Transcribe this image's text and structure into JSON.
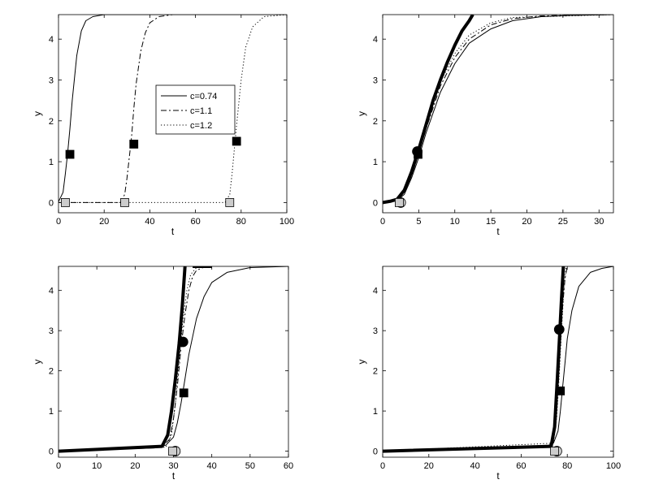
{
  "chart_data": [
    {
      "type": "line",
      "xlabel": "t",
      "ylabel": "y",
      "xlim": [
        0,
        100
      ],
      "ylim": [
        -0.25,
        4.6
      ],
      "xticks": [
        "0",
        "20",
        "40",
        "60",
        "80",
        "100"
      ],
      "yticks": [
        "0",
        "1",
        "2",
        "3",
        "4"
      ],
      "legend": {
        "placement": "center",
        "entries": [
          {
            "label": "c=0.74",
            "style": "solid"
          },
          {
            "label": "c=1.1",
            "style": "dashdot"
          },
          {
            "label": "c=1.2",
            "style": "dotted"
          }
        ]
      },
      "series": [
        {
          "name": "c=0.74",
          "style": "solid",
          "width": 1,
          "points": [
            [
              0,
              0.02
            ],
            [
              2,
              0.25
            ],
            [
              3,
              0.7
            ],
            [
              4,
              1.2
            ],
            [
              5,
              1.8
            ],
            [
              6,
              2.5
            ],
            [
              8,
              3.6
            ],
            [
              10,
              4.2
            ],
            [
              12,
              4.45
            ],
            [
              15,
              4.55
            ],
            [
              20,
              4.6
            ],
            [
              100,
              4.6
            ]
          ]
        },
        {
          "name": "c=1.1",
          "style": "dashdot",
          "width": 1,
          "points": [
            [
              0,
              0
            ],
            [
              27,
              0
            ],
            [
              29,
              0.2
            ],
            [
              30,
              0.6
            ],
            [
              31,
              1.1
            ],
            [
              32,
              1.6
            ],
            [
              33,
              2.3
            ],
            [
              34,
              2.9
            ],
            [
              36,
              3.7
            ],
            [
              38,
              4.15
            ],
            [
              40,
              4.4
            ],
            [
              44,
              4.55
            ],
            [
              50,
              4.6
            ],
            [
              100,
              4.6
            ]
          ]
        },
        {
          "name": "c=1.2",
          "style": "dotted",
          "width": 1,
          "points": [
            [
              0,
              0
            ],
            [
              73,
              0
            ],
            [
              75,
              0.2
            ],
            [
              76,
              0.7
            ],
            [
              77,
              1.3
            ],
            [
              78,
              1.9
            ],
            [
              80,
              3.0
            ],
            [
              82,
              3.8
            ],
            [
              85,
              4.3
            ],
            [
              90,
              4.55
            ],
            [
              100,
              4.6
            ]
          ]
        }
      ],
      "markers": [
        {
          "shape": "square",
          "fill": "#000000",
          "x": 5,
          "y": 1.18
        },
        {
          "shape": "square",
          "fill": "#000000",
          "x": 33,
          "y": 1.43
        },
        {
          "shape": "square",
          "fill": "#000000",
          "x": 78,
          "y": 1.5
        },
        {
          "shape": "square",
          "fill": "#cccccc",
          "x": 3,
          "y": 0
        },
        {
          "shape": "square",
          "fill": "#cccccc",
          "x": 29,
          "y": 0
        },
        {
          "shape": "square",
          "fill": "#cccccc",
          "x": 75,
          "y": 0
        }
      ]
    },
    {
      "type": "line",
      "xlabel": "t",
      "ylabel": "y",
      "xlim": [
        0,
        32
      ],
      "ylim": [
        -0.25,
        4.6
      ],
      "xticks": [
        "0",
        "5",
        "10",
        "15",
        "20",
        "25",
        "30"
      ],
      "yticks": [
        "0",
        "1",
        "2",
        "3",
        "4"
      ],
      "series": [
        {
          "style": "solid",
          "width": 1,
          "points": [
            [
              0,
              0.02
            ],
            [
              2,
              0.05
            ],
            [
              3,
              0.2
            ],
            [
              4,
              0.6
            ],
            [
              5,
              1.1
            ],
            [
              6,
              1.7
            ],
            [
              8,
              2.7
            ],
            [
              10,
              3.4
            ],
            [
              12,
              3.9
            ],
            [
              15,
              4.25
            ],
            [
              18,
              4.45
            ],
            [
              22,
              4.55
            ],
            [
              26,
              4.58
            ],
            [
              32,
              4.6
            ]
          ]
        },
        {
          "style": "dashdot",
          "width": 1,
          "points": [
            [
              0,
              0.02
            ],
            [
              2,
              0.06
            ],
            [
              3,
              0.25
            ],
            [
              4,
              0.65
            ],
            [
              5,
              1.2
            ],
            [
              6,
              1.8
            ],
            [
              8,
              2.85
            ],
            [
              10,
              3.55
            ],
            [
              12,
              4.0
            ],
            [
              15,
              4.35
            ],
            [
              18,
              4.5
            ],
            [
              22,
              4.57
            ],
            [
              32,
              4.6
            ]
          ]
        },
        {
          "style": "dotted",
          "width": 1,
          "points": [
            [
              0,
              0.02
            ],
            [
              2,
              0.07
            ],
            [
              3,
              0.28
            ],
            [
              4,
              0.7
            ],
            [
              5,
              1.25
            ],
            [
              6,
              1.85
            ],
            [
              8,
              2.95
            ],
            [
              10,
              3.65
            ],
            [
              12,
              4.1
            ],
            [
              15,
              4.4
            ],
            [
              18,
              4.53
            ],
            [
              32,
              4.6
            ]
          ]
        },
        {
          "style": "solid",
          "width": 4,
          "points": [
            [
              0,
              0
            ],
            [
              1,
              0.03
            ],
            [
              2,
              0.08
            ],
            [
              3,
              0.3
            ],
            [
              4,
              0.75
            ],
            [
              5,
              1.3
            ],
            [
              6,
              1.9
            ],
            [
              7,
              2.5
            ],
            [
              8,
              3.0
            ],
            [
              9,
              3.45
            ],
            [
              10,
              3.85
            ],
            [
              11,
              4.2
            ],
            [
              12,
              4.45
            ],
            [
              12.5,
              4.6
            ]
          ]
        }
      ],
      "markers": [
        {
          "shape": "circle",
          "fill": "#000000",
          "x": 4.8,
          "y": 1.25
        },
        {
          "shape": "square",
          "fill": "#000000",
          "x": 4.9,
          "y": 1.18
        },
        {
          "shape": "circle",
          "fill": "#cccccc",
          "x": 2.5,
          "y": 0
        },
        {
          "shape": "square",
          "fill": "#cccccc",
          "x": 2.3,
          "y": 0
        }
      ]
    },
    {
      "type": "line",
      "xlabel": "t",
      "ylabel": "y",
      "xlim": [
        0,
        60
      ],
      "ylim": [
        -0.15,
        4.6
      ],
      "xticks": [
        "0",
        "10",
        "20",
        "30",
        "40",
        "50",
        "60"
      ],
      "yticks": [
        "0",
        "1",
        "2",
        "3",
        "4"
      ],
      "series": [
        {
          "style": "solid",
          "width": 1,
          "points": [
            [
              0,
              0
            ],
            [
              25,
              0.08
            ],
            [
              28,
              0.15
            ],
            [
              30,
              0.35
            ],
            [
              31,
              0.7
            ],
            [
              32,
              1.2
            ],
            [
              33,
              1.8
            ],
            [
              34,
              2.4
            ],
            [
              36,
              3.3
            ],
            [
              38,
              3.85
            ],
            [
              40,
              4.2
            ],
            [
              44,
              4.45
            ],
            [
              50,
              4.57
            ],
            [
              60,
              4.6
            ]
          ]
        },
        {
          "style": "dashdot",
          "width": 1,
          "points": [
            [
              0,
              0
            ],
            [
              27,
              0.1
            ],
            [
              29,
              0.3
            ],
            [
              30,
              0.8
            ],
            [
              31,
              1.6
            ],
            [
              32,
              2.6
            ],
            [
              33,
              3.4
            ],
            [
              34,
              4.0
            ],
            [
              35,
              4.35
            ],
            [
              36,
              4.5
            ],
            [
              38,
              4.58
            ],
            [
              40,
              4.6
            ]
          ]
        },
        {
          "style": "dotted",
          "width": 1,
          "points": [
            [
              0,
              0
            ],
            [
              28,
              0.1
            ],
            [
              29.5,
              0.4
            ],
            [
              30.5,
              1.2
            ],
            [
              31.5,
              2.3
            ],
            [
              32.5,
              3.3
            ],
            [
              33.5,
              4.0
            ],
            [
              34.5,
              4.4
            ],
            [
              36,
              4.57
            ],
            [
              40,
              4.6
            ]
          ]
        },
        {
          "style": "solid",
          "width": 4,
          "points": [
            [
              0,
              0
            ],
            [
              27,
              0.12
            ],
            [
              28.5,
              0.4
            ],
            [
              29.5,
              1.0
            ],
            [
              30.5,
              1.8
            ],
            [
              31.5,
              2.7
            ],
            [
              32.3,
              3.6
            ],
            [
              33,
              4.6
            ]
          ]
        },
        {
          "style": "solid",
          "width": 4,
          "points": [
            [
              35,
              4.6
            ],
            [
              40,
              4.6
            ]
          ]
        }
      ],
      "markers": [
        {
          "shape": "circle",
          "fill": "#000000",
          "x": 32.5,
          "y": 2.72
        },
        {
          "shape": "square",
          "fill": "#000000",
          "x": 32.7,
          "y": 1.45
        },
        {
          "shape": "circle",
          "fill": "#cccccc",
          "x": 30.5,
          "y": 0
        },
        {
          "shape": "square",
          "fill": "#cccccc",
          "x": 29.8,
          "y": 0
        }
      ]
    },
    {
      "type": "line",
      "xlabel": "t",
      "ylabel": "y",
      "xlim": [
        0,
        100
      ],
      "ylim": [
        -0.15,
        4.6
      ],
      "xticks": [
        "0",
        "20",
        "40",
        "60",
        "80",
        "100"
      ],
      "yticks": [
        "0",
        "1",
        "2",
        "3",
        "4"
      ],
      "series": [
        {
          "style": "solid",
          "width": 1,
          "points": [
            [
              0,
              0
            ],
            [
              70,
              0.1
            ],
            [
              74,
              0.2
            ],
            [
              76,
              0.5
            ],
            [
              77,
              1.0
            ],
            [
              78,
              1.6
            ],
            [
              79,
              2.2
            ],
            [
              80,
              2.8
            ],
            [
              82,
              3.5
            ],
            [
              85,
              4.1
            ],
            [
              90,
              4.45
            ],
            [
              95,
              4.55
            ],
            [
              100,
              4.6
            ]
          ]
        },
        {
          "style": "dashdot",
          "width": 1,
          "points": [
            [
              0,
              0
            ],
            [
              73,
              0.15
            ],
            [
              75,
              0.6
            ],
            [
              76,
              1.5
            ],
            [
              77,
              2.6
            ],
            [
              78,
              3.6
            ],
            [
              79,
              4.3
            ],
            [
              80,
              4.6
            ]
          ]
        },
        {
          "style": "dotted",
          "width": 1,
          "points": [
            [
              0,
              0
            ],
            [
              74,
              0.2
            ],
            [
              75.5,
              0.9
            ],
            [
              76.5,
              1.9
            ],
            [
              77.5,
              3.0
            ],
            [
              78.5,
              4.0
            ],
            [
              79.5,
              4.6
            ]
          ]
        },
        {
          "style": "solid",
          "width": 4,
          "points": [
            [
              0,
              0
            ],
            [
              73,
              0.12
            ],
            [
              74.5,
              0.6
            ],
            [
              75.5,
              1.6
            ],
            [
              76.5,
              2.7
            ],
            [
              77.5,
              3.8
            ],
            [
              78.3,
              4.6
            ]
          ]
        }
      ],
      "markers": [
        {
          "shape": "circle",
          "fill": "#000000",
          "x": 76.5,
          "y": 3.03
        },
        {
          "shape": "square",
          "fill": "#000000",
          "x": 77,
          "y": 1.5
        },
        {
          "shape": "circle",
          "fill": "#cccccc",
          "x": 75.5,
          "y": 0
        },
        {
          "shape": "square",
          "fill": "#cccccc",
          "x": 74.5,
          "y": 0
        }
      ]
    }
  ]
}
